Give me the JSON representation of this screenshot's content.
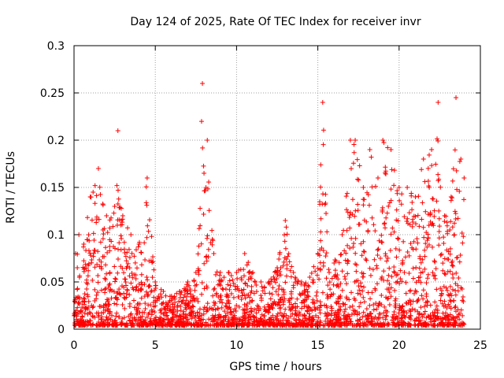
{
  "chart_data": {
    "type": "scatter",
    "title": "Day 124 of 2025, Rate Of TEC Index for receiver invr",
    "xlabel": "GPS time / hours",
    "ylabel": "ROTI / TECUs",
    "xlim": [
      0,
      25
    ],
    "ylim": [
      0,
      0.3
    ],
    "x_ticks": [
      0,
      5,
      10,
      15,
      20,
      25
    ],
    "y_ticks": [
      0,
      0.05,
      0.1,
      0.15,
      0.2,
      0.25,
      0.3
    ],
    "x_tick_labels": [
      "0",
      "5",
      "10",
      "15",
      "20",
      "25"
    ],
    "y_tick_labels": [
      "0",
      "0.05",
      "0.1",
      "0.15",
      "0.2",
      "0.25",
      "0.3"
    ],
    "grid": true,
    "marker": "plus",
    "color": "#ff0000",
    "envelope_note": "Dense scatter of ROTI samples, 0-24 h; values below are approximate per-interval upper envelope",
    "series": [
      {
        "name": "ROTI",
        "x": [
          0.1,
          0.3,
          0.6,
          1.0,
          1.5,
          2.0,
          2.5,
          2.7,
          3.0,
          3.5,
          4.0,
          4.5,
          5.0,
          5.5,
          6.0,
          6.5,
          7.0,
          7.5,
          7.9,
          8.2,
          8.6,
          9.0,
          9.5,
          10.0,
          10.5,
          11.0,
          11.5,
          12.0,
          12.5,
          13.0,
          13.5,
          14.0,
          14.5,
          15.0,
          15.3,
          15.7,
          16.0,
          16.5,
          17.0,
          17.3,
          17.8,
          18.2,
          18.7,
          19.0,
          19.5,
          20.0,
          20.5,
          21.0,
          21.5,
          22.0,
          22.4,
          22.8,
          23.2,
          23.5,
          23.8,
          24.0
        ],
        "y": [
          0.08,
          0.1,
          0.09,
          0.14,
          0.17,
          0.12,
          0.13,
          0.21,
          0.12,
          0.1,
          0.09,
          0.16,
          0.05,
          0.04,
          0.035,
          0.04,
          0.05,
          0.06,
          0.26,
          0.2,
          0.08,
          0.06,
          0.06,
          0.06,
          0.08,
          0.06,
          0.05,
          0.05,
          0.065,
          0.115,
          0.06,
          0.05,
          0.055,
          0.08,
          0.24,
          0.06,
          0.07,
          0.1,
          0.2,
          0.2,
          0.15,
          0.19,
          0.16,
          0.2,
          0.19,
          0.15,
          0.15,
          0.14,
          0.18,
          0.19,
          0.24,
          0.12,
          0.14,
          0.245,
          0.18,
          0.16
        ]
      }
    ]
  }
}
